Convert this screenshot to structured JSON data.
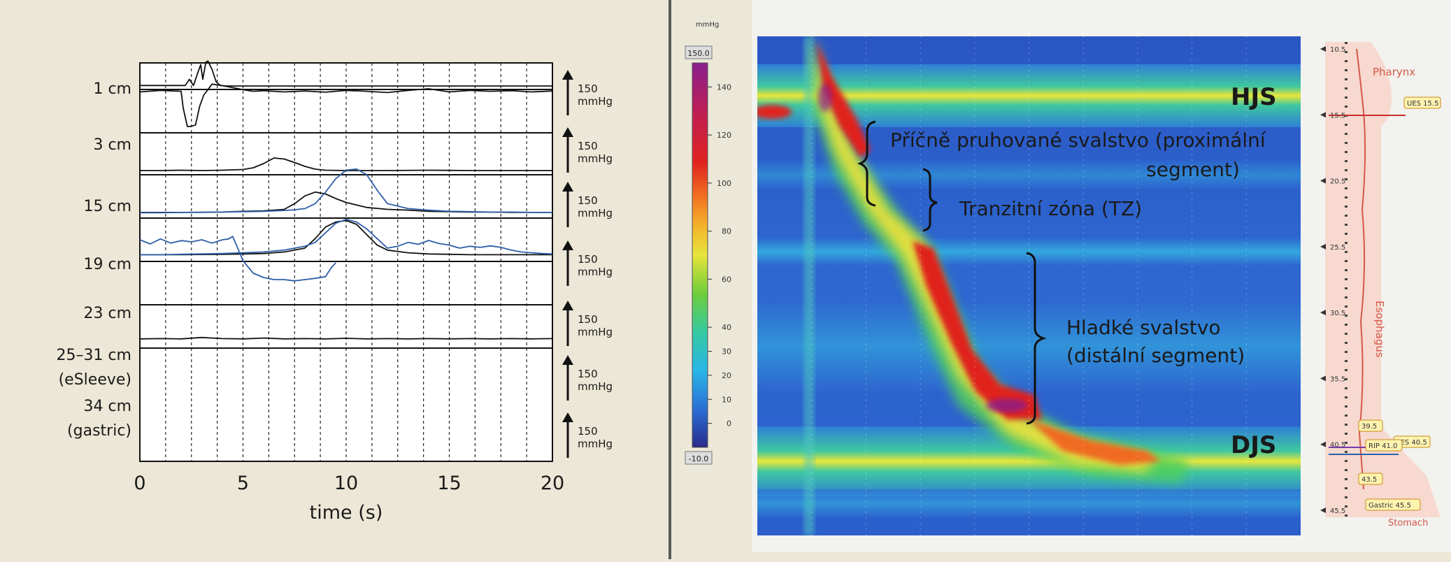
{
  "colors": {
    "panel_bg": "#ece7d6",
    "trace_black": "#111111",
    "trace_blue": "#2e5ea8",
    "label_dark": "#1a1a1a",
    "anat_label": "#d5584a"
  },
  "chart_data": [
    {
      "type": "line",
      "xlabel": "time (s)",
      "xlim": [
        0,
        20
      ],
      "x_ticks": [
        "0",
        "5",
        "10",
        "15",
        "20"
      ],
      "grid": "vertical dashed every 1.25 s",
      "scale_unit": "150",
      "scale_unit2": "mmHg",
      "channels": [
        {
          "label": "1 cm",
          "sublabel": "",
          "color": "black",
          "x": [
            0,
            2.2,
            2.4,
            2.6,
            2.8,
            2.95,
            3.05,
            3.2,
            3.3,
            3.5,
            3.7,
            3.9,
            4.2,
            5,
            10,
            15,
            20
          ],
          "y": [
            5,
            5,
            30,
            5,
            55,
            90,
            30,
            100,
            105,
            70,
            20,
            5,
            3,
            3,
            3,
            3,
            3
          ]
        },
        {
          "label": "3 cm",
          "sublabel": "",
          "color": "black",
          "x": [
            0,
            1,
            2,
            2.1,
            2.3,
            2.45,
            2.7,
            2.9,
            3.1,
            3.5,
            4,
            4.4,
            5,
            5.5,
            6,
            7,
            8,
            9,
            10,
            11,
            12,
            13,
            14,
            15,
            16,
            17,
            18,
            19,
            20
          ],
          "y": [
            50,
            55,
            52,
            0,
            -60,
            -60,
            -55,
            5,
            40,
            75,
            70,
            65,
            57,
            52,
            54,
            50,
            53,
            49,
            55,
            52,
            48,
            55,
            60,
            50,
            55,
            52,
            54,
            50,
            53
          ]
        },
        {
          "label": "15 cm",
          "sublabel": "",
          "color": "black",
          "x": [
            0,
            1,
            2,
            3,
            4,
            5,
            5.5,
            6,
            6.5,
            7,
            7.5,
            8,
            8.5,
            9,
            10,
            12,
            14,
            16,
            18,
            20
          ],
          "y": [
            2,
            2,
            3,
            2,
            3,
            5,
            10,
            22,
            38,
            35,
            25,
            14,
            6,
            3,
            2,
            2,
            3,
            2,
            2,
            2
          ]
        },
        {
          "label": "19 cm",
          "sublabel": "",
          "color": "black",
          "x": [
            0,
            2,
            4,
            5,
            6,
            7,
            7.5,
            8,
            8.5,
            9,
            9.5,
            10,
            11,
            12,
            13,
            14,
            15,
            16,
            17,
            18,
            19,
            20
          ],
          "y": [
            2,
            2,
            3,
            5,
            6,
            10,
            25,
            45,
            55,
            50,
            38,
            28,
            15,
            10,
            8,
            5,
            4,
            3,
            3,
            2,
            2,
            2
          ]
        },
        {
          "label": "",
          "sublabel": "",
          "color": "blue",
          "x": [
            0,
            1,
            2,
            3,
            4,
            5,
            6,
            7,
            7.5,
            8,
            8.5,
            9,
            9.5,
            10,
            10.5,
            11,
            11.5,
            12,
            13,
            14,
            15,
            16,
            17,
            18,
            19,
            20
          ],
          "y": [
            1,
            1,
            2,
            2,
            3,
            4,
            5,
            7,
            9,
            12,
            25,
            55,
            90,
            112,
            115,
            100,
            60,
            25,
            12,
            8,
            5,
            4,
            3,
            3,
            2,
            2
          ]
        },
        {
          "label": "23 cm",
          "sublabel": "",
          "color": "black",
          "x": [
            0,
            2,
            4,
            5,
            6,
            7,
            8,
            8.5,
            9,
            9.5,
            10,
            10.5,
            11,
            11.5,
            12,
            13,
            14,
            15,
            16,
            17,
            18,
            19,
            20
          ],
          "y": [
            3,
            3,
            4,
            5,
            6,
            10,
            20,
            45,
            75,
            88,
            92,
            82,
            55,
            28,
            15,
            8,
            5,
            4,
            3,
            3,
            3,
            3,
            3
          ]
        },
        {
          "label": "",
          "sublabel": "",
          "color": "blue",
          "x": [
            0,
            1,
            2,
            3,
            4,
            5,
            6,
            7,
            8,
            8.5,
            9,
            9.5,
            10,
            10.5,
            11,
            11.5,
            12,
            12.5,
            13,
            13.5,
            14,
            14.5,
            15,
            15.5,
            16,
            16.5,
            17,
            17.5,
            18,
            18.5,
            19,
            19.5,
            20
          ],
          "y": [
            3,
            3,
            4,
            5,
            6,
            8,
            10,
            15,
            25,
            35,
            60,
            85,
            95,
            88,
            70,
            45,
            20,
            25,
            35,
            30,
            40,
            32,
            28,
            20,
            25,
            22,
            26,
            22,
            15,
            10,
            8,
            6,
            5
          ]
        },
        {
          "label": "25–31 cm",
          "sublabel": "(eSleeve)",
          "color": "blue",
          "x": [
            0,
            0.5,
            1,
            1.5,
            2,
            2.5,
            3,
            3.5,
            4,
            4.3,
            4.5,
            5,
            5.5,
            6,
            6.5,
            7,
            7.5,
            8,
            8.5,
            9,
            9.3,
            9.5
          ],
          "y": [
            70,
            60,
            72,
            62,
            68,
            65,
            70,
            62,
            70,
            72,
            78,
            20,
            -10,
            -20,
            -25,
            -25,
            -28,
            -25,
            -22,
            -18,
            5,
            15
          ]
        },
        {
          "label": "34 cm",
          "sublabel": "(gastric)",
          "color": "black",
          "x": [
            0,
            1,
            2,
            3,
            4,
            5,
            6,
            7,
            8,
            9,
            10,
            11,
            12,
            13,
            14,
            15,
            16,
            17,
            18,
            19,
            20
          ],
          "y": [
            3,
            4,
            3,
            8,
            4,
            3,
            6,
            3,
            4,
            3,
            5,
            3,
            4,
            3,
            4,
            3,
            4,
            3,
            4,
            3,
            4
          ]
        }
      ]
    },
    {
      "type": "heatmap",
      "unit": "mmHg",
      "scale_top": "150.0",
      "scale_bottom": "-10.0",
      "scale_ticks": [
        "140",
        "120",
        "100",
        "80",
        "60",
        "40",
        "30",
        "20",
        "10",
        "0"
      ],
      "labels": {
        "upper_sphincter": "HJS",
        "lower_sphincter": "DJS",
        "proximal_line1": "Příčně pruhované svalstvo (proximální",
        "proximal_line2": "segment)",
        "transition": "Tranzitní zóna (TZ)",
        "distal_line1": "Hladké svalstvo",
        "distal_line2": "(distální segment)"
      },
      "anatomy": {
        "pharynx": "Pharynx",
        "esophagus": "Esophagus",
        "stomach": "Stomach",
        "depths": [
          "10.5",
          "15.5",
          "20.5",
          "25.5",
          "30.5",
          "35.5",
          "40.5",
          "45.5"
        ],
        "markers": [
          "UES 15.5",
          "LES 40.5",
          "RIP 41.0",
          "39.5",
          "43.5",
          "Gastric 45.5"
        ]
      }
    }
  ]
}
